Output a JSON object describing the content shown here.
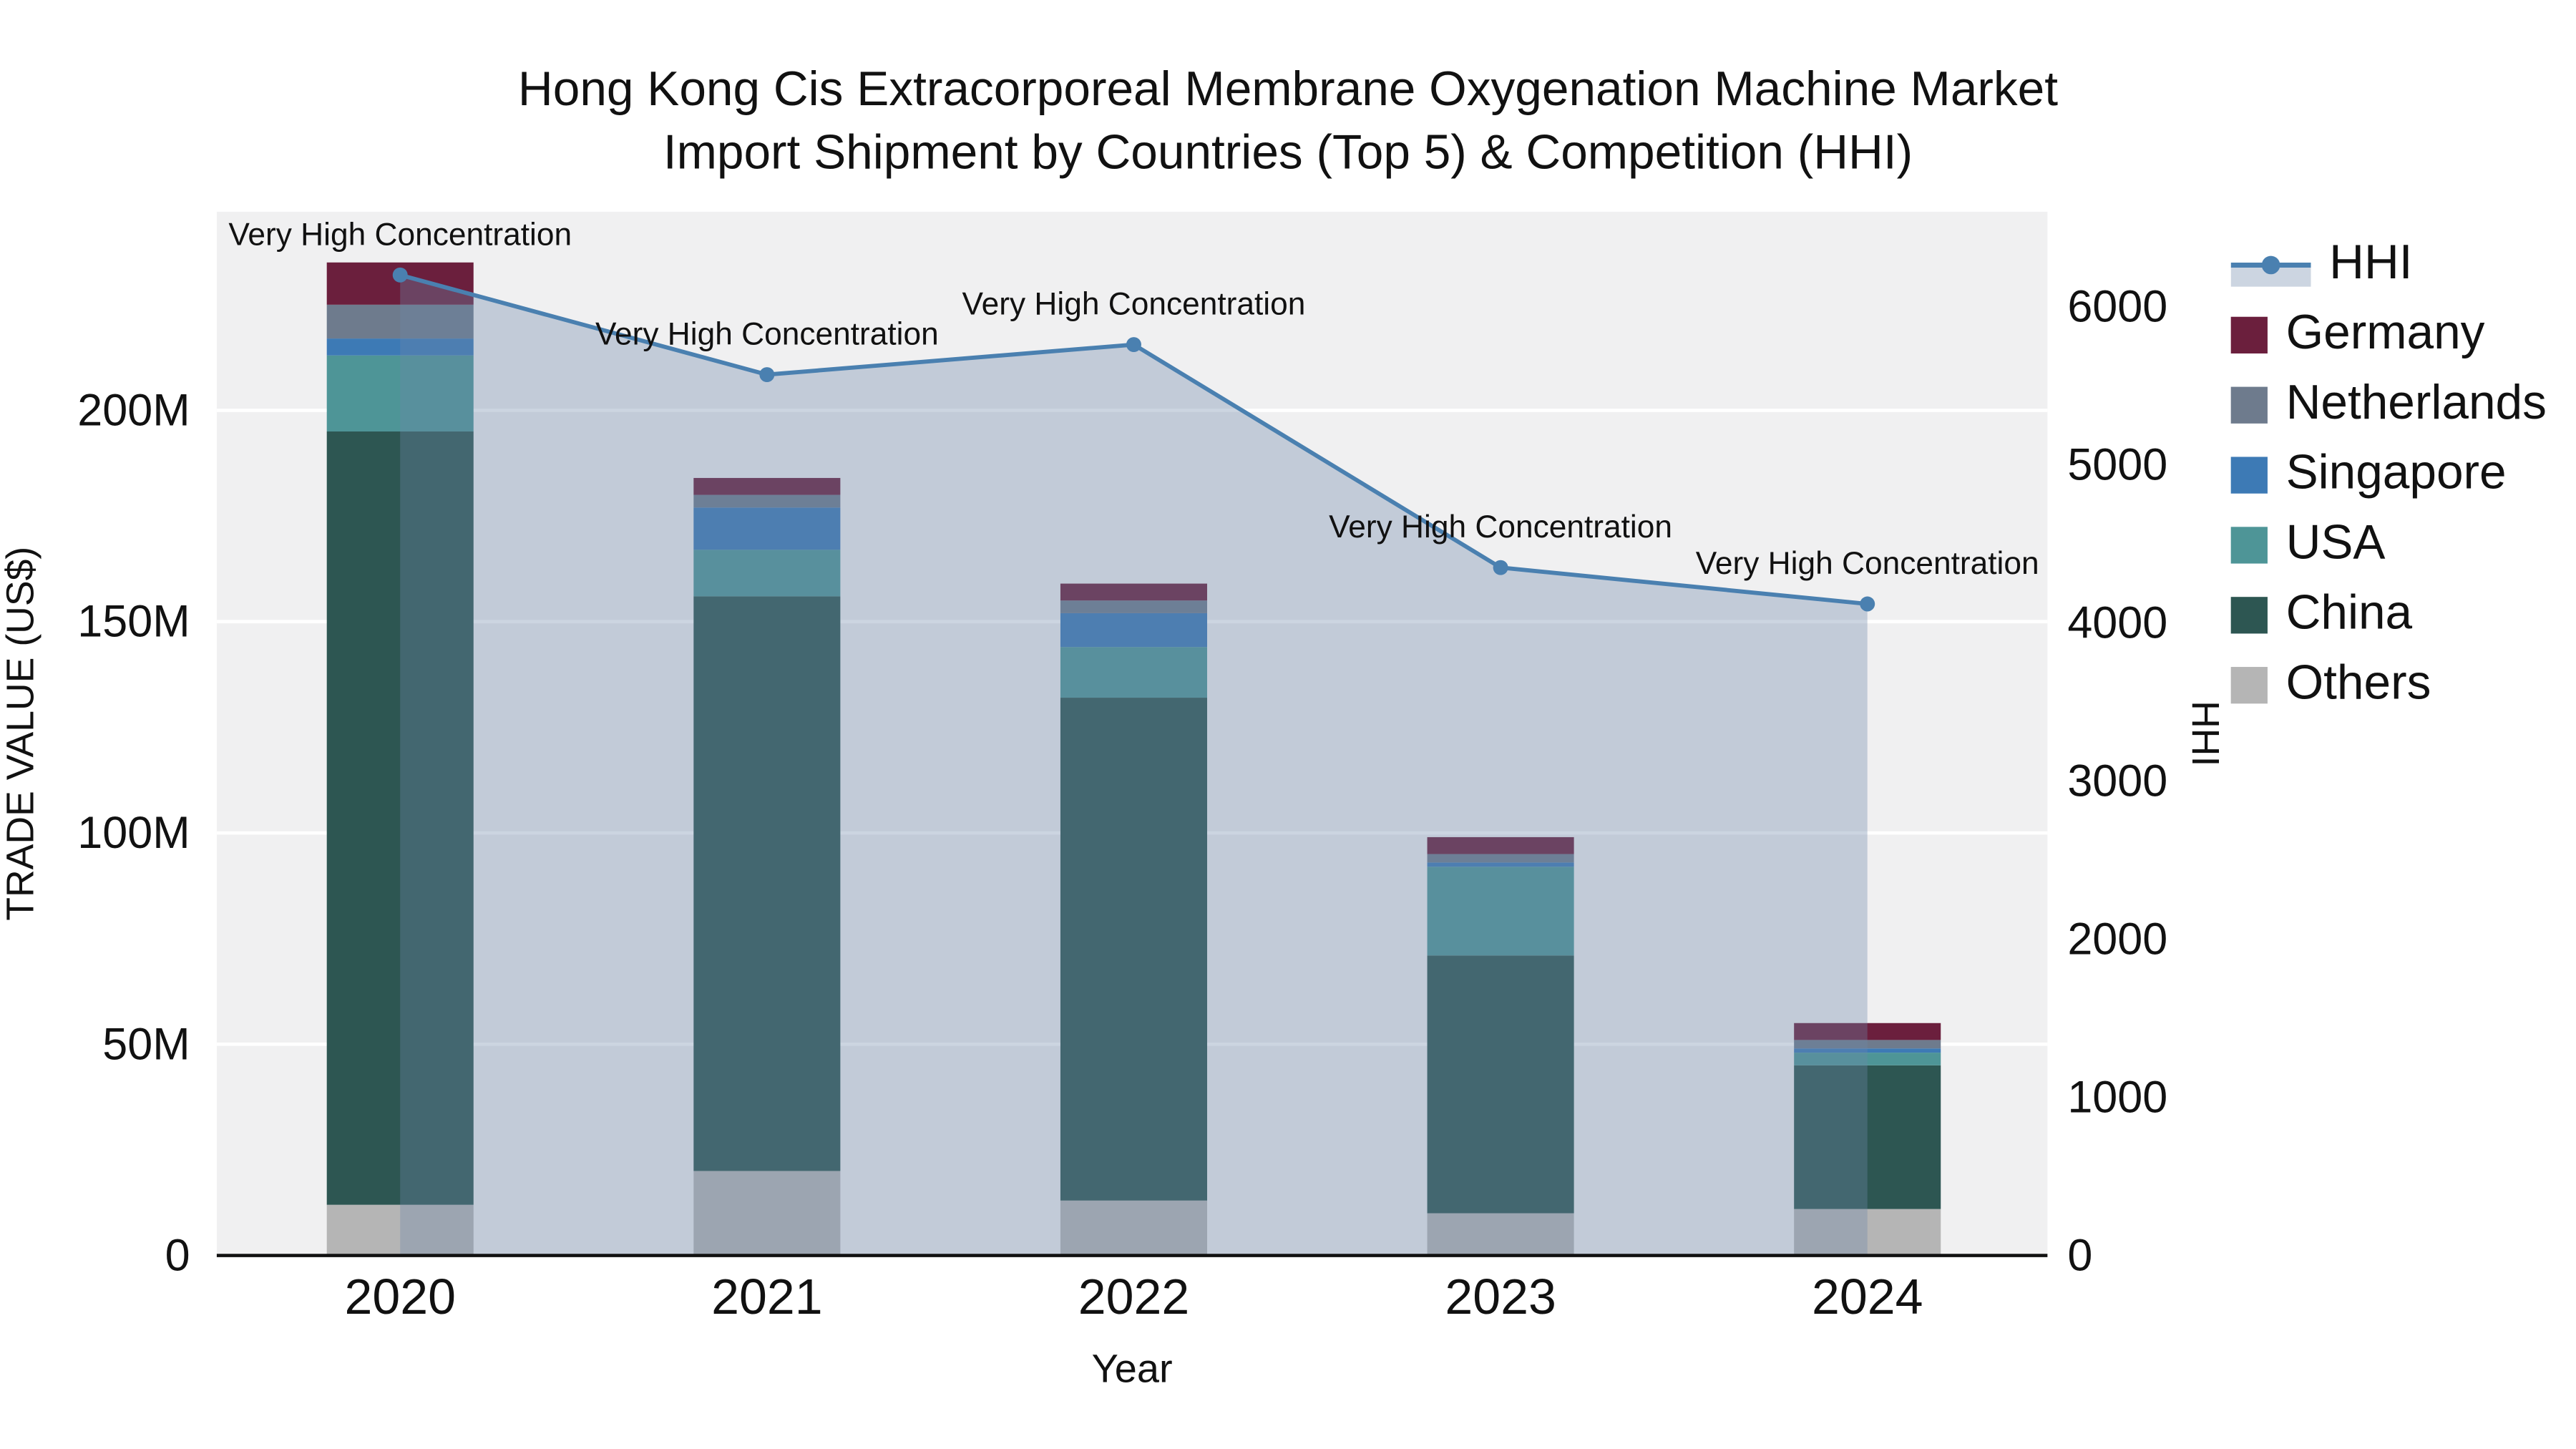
{
  "title": {
    "line1": "Hong Kong Cis Extracorporeal Membrane Oxygenation Machine Market",
    "line2": "Import Shipment by Countries (Top 5) & Competition (HHI)"
  },
  "chart_data": {
    "type": "bar",
    "stacked": true,
    "categories": [
      "2020",
      "2021",
      "2022",
      "2023",
      "2024"
    ],
    "xlabel": "Year",
    "ylabel_left": "TRADE VALUE (US$)",
    "ylabel_right": "HHI",
    "value_unit": "million US$",
    "y_left_tick_values": [
      0,
      50,
      100,
      150,
      200
    ],
    "y_left_tick_labels": [
      "0",
      "50M",
      "100M",
      "150M",
      "200M"
    ],
    "y_left_max": 247,
    "y_right_tick_values": [
      0,
      1000,
      2000,
      3000,
      4000,
      5000,
      6000
    ],
    "y_right_tick_labels": [
      "0",
      "1000",
      "2000",
      "3000",
      "4000",
      "5000",
      "6000"
    ],
    "y_right_max": 6600,
    "plot_background": "#f0f0f1",
    "gridline_color": "#ffffff",
    "series": [
      {
        "name": "Others",
        "color": "#b5b5b5",
        "values": [
          12,
          20,
          13,
          10,
          11
        ]
      },
      {
        "name": "China",
        "color": "#2d5652",
        "values": [
          183,
          136,
          119,
          61,
          34
        ]
      },
      {
        "name": "USA",
        "color": "#4e9597",
        "values": [
          18,
          11,
          12,
          21,
          3
        ]
      },
      {
        "name": "Singapore",
        "color": "#3d7ab5",
        "values": [
          4,
          10,
          8,
          1,
          1
        ]
      },
      {
        "name": "Netherlands",
        "color": "#6e7b8d",
        "values": [
          8,
          3,
          3,
          2,
          2
        ]
      },
      {
        "name": "Germany",
        "color": "#6b1f3d",
        "values": [
          10,
          4,
          4,
          4,
          4
        ]
      }
    ],
    "hhi": {
      "name": "HHI",
      "color": "#4a80b0",
      "fill": "rgba(110,135,170,0.35)",
      "values": [
        6200,
        5570,
        5760,
        4350,
        4120
      ],
      "annotation": "Very High Concentration"
    },
    "legend_position": "right",
    "legend_order": [
      "HHI",
      "Germany",
      "Netherlands",
      "Singapore",
      "USA",
      "China",
      "Others"
    ]
  }
}
